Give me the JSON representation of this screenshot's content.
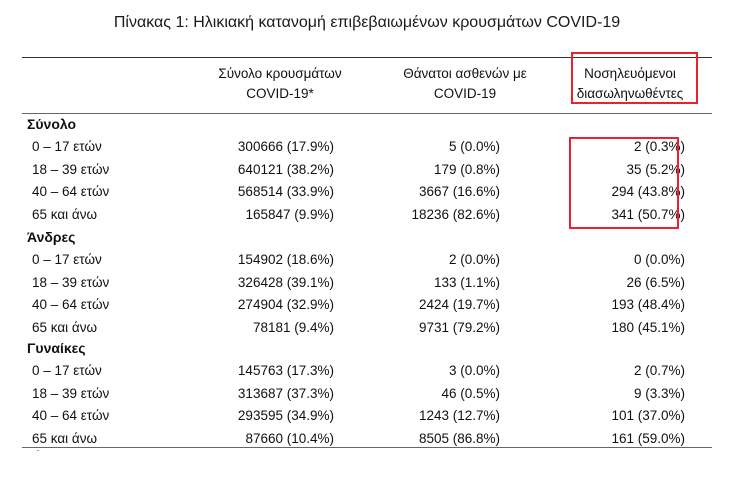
{
  "caption": "Πίνακας 1: Ηλικιακή κατανομή επιβεβαιωμένων κρουσμάτων COVID-19",
  "headers": {
    "total_line1": "Σύνολο κρουσμάτων",
    "total_line2": "COVID-19*",
    "deaths_line1": "Θάνατοι ασθενών με",
    "deaths_line2": "COVID-19",
    "hosp_line1": "Νοσηλευόμενοι",
    "hosp_line2": "διασωληνωθέντες"
  },
  "groups": [
    {
      "title": "Σύνολο",
      "rows": [
        {
          "age": "0 – 17 ετών",
          "total": "300666 (17.9%)",
          "deaths": "5 (0.0%)",
          "hosp": "2 (0.3%)"
        },
        {
          "age": "18 – 39 ετών",
          "total": "640121 (38.2%)",
          "deaths": "179 (0.8%)",
          "hosp": "35 (5.2%)"
        },
        {
          "age": "40 – 64 ετών",
          "total": "568514 (33.9%)",
          "deaths": "3667 (16.6%)",
          "hosp": "294 (43.8%)"
        },
        {
          "age": "65 και άνω",
          "total": "165847 (9.9%)",
          "deaths": "18236 (82.6%)",
          "hosp": "341 (50.7%)"
        }
      ]
    },
    {
      "title": "Άνδρες",
      "rows": [
        {
          "age": "0 – 17 ετών",
          "total": "154902 (18.6%)",
          "deaths": "2 (0.0%)",
          "hosp": "0 (0.0%)"
        },
        {
          "age": "18 – 39 ετών",
          "total": "326428 (39.1%)",
          "deaths": "133 (1.1%)",
          "hosp": "26 (6.5%)"
        },
        {
          "age": "40 – 64 ετών",
          "total": "274904 (32.9%)",
          "deaths": "2424 (19.7%)",
          "hosp": "193 (48.4%)"
        },
        {
          "age": "65 και άνω",
          "total": "78181 (9.4%)",
          "deaths": "9731 (79.2%)",
          "hosp": "180 (45.1%)"
        }
      ]
    },
    {
      "title": "Γυναίκες",
      "rows": [
        {
          "age": "0 – 17 ετών",
          "total": "145763 (17.3%)",
          "deaths": "3 (0.0%)",
          "hosp": "2 (0.7%)"
        },
        {
          "age": "18 – 39 ετών",
          "total": "313687 (37.3%)",
          "deaths": "46 (0.5%)",
          "hosp": "9 (3.3%)"
        },
        {
          "age": "40 – 64 ετών",
          "total": "293595 (34.9%)",
          "deaths": "1243 (12.7%)",
          "hosp": "101 (37.0%)"
        },
        {
          "age": "65 και άνω",
          "total": "87660 (10.4%)",
          "deaths": "8505 (86.8%)",
          "hosp": "161 (59.0%)"
        }
      ]
    }
  ],
  "highlight_color": "#e8232a"
}
